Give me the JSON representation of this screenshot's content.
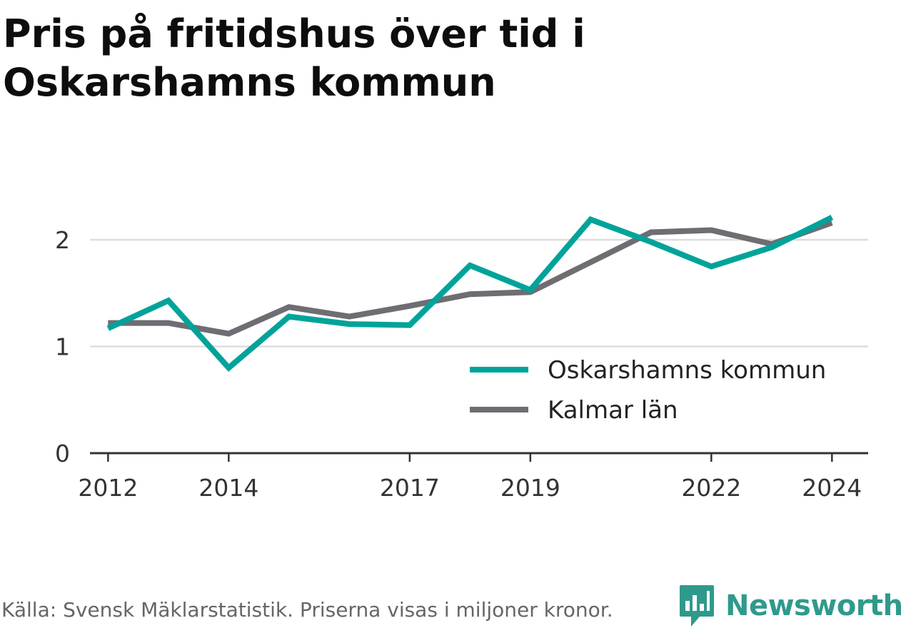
{
  "title": "Pris på fritidshus över tid i Oskarshamns kommun",
  "footer": {
    "source": "Källa: Svensk Mäklarstatistik. Priserna visas i miljoner kronor.",
    "brand": "Newsworthy"
  },
  "colors": {
    "series_primary": "#00a39a",
    "series_secondary": "#6e6d72",
    "grid": "#dddddd",
    "axis": "#333333",
    "brand": "#2f9a8c"
  },
  "icons": {
    "brand_logo": "newsworthy-chart-bubble-icon"
  },
  "chart_data": {
    "type": "line",
    "title": "Pris på fritidshus över tid i Oskarshamns kommun",
    "xlabel": "",
    "ylabel": "",
    "x": [
      2012,
      2013,
      2014,
      2015,
      2016,
      2017,
      2018,
      2019,
      2020,
      2021,
      2022,
      2023,
      2024
    ],
    "xticks": [
      "2012",
      "2014",
      "2017",
      "2019",
      "2022",
      "2024"
    ],
    "xlim": [
      2011.7,
      2024.6
    ],
    "yticks": [
      "0",
      "1",
      "2"
    ],
    "ylim": [
      0,
      2.3
    ],
    "grid": true,
    "legend_position": "bottom-right",
    "series": [
      {
        "name": "Oskarshamns kommun",
        "values": [
          1.17,
          1.43,
          0.8,
          1.28,
          1.21,
          1.2,
          1.76,
          1.53,
          2.19,
          1.98,
          1.75,
          1.93,
          2.21
        ]
      },
      {
        "name": "Kalmar län",
        "values": [
          1.22,
          1.22,
          1.12,
          1.37,
          1.28,
          1.38,
          1.49,
          1.51,
          1.79,
          2.07,
          2.09,
          1.96,
          2.16
        ]
      }
    ]
  }
}
